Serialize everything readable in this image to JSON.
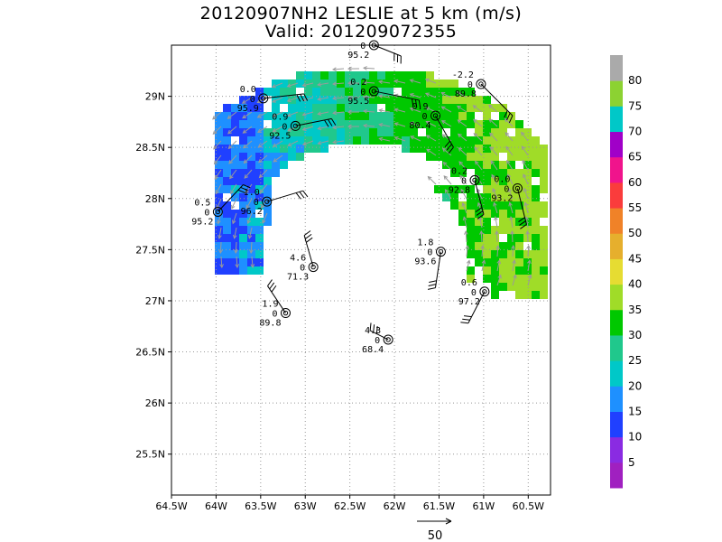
{
  "title": "20120907NH2 LESLIE at 5 km (m/s)",
  "subtitle": "Valid: 201209072355",
  "map": {
    "lon_range": [
      -64.5,
      -60.25
    ],
    "lat_range": [
      25.1,
      29.5
    ],
    "x_ticks": [
      -64.5,
      -64,
      -63.5,
      -63,
      -62.5,
      -62,
      -61.5,
      -61,
      -60.5
    ],
    "x_tick_labels": [
      "64.5W",
      "64W",
      "63.5W",
      "63W",
      "62.5W",
      "62W",
      "61.5W",
      "61W",
      "60.5W"
    ],
    "y_ticks": [
      25.5,
      26,
      26.5,
      27,
      27.5,
      28,
      28.5,
      29
    ],
    "y_tick_labels": [
      "25.5N",
      "26N",
      "26.5N",
      "27N",
      "27.5N",
      "28N",
      "28.5N",
      "29N"
    ],
    "grid": true,
    "field": "wind speed (m/s), partial eyewall arc; weak winds (10-20) on west side, 25-35 on north and east sides"
  },
  "colorbar": {
    "labels": [
      "5",
      "10",
      "15",
      "20",
      "25",
      "30",
      "35",
      "40",
      "45",
      "50",
      "55",
      "60",
      "65",
      "70",
      "75",
      "80"
    ],
    "colors": [
      "#a020c0",
      "#8a2be2",
      "#2040ff",
      "#1e90ff",
      "#00c8c8",
      "#20c88c",
      "#00c800",
      "#a0dc28",
      "#e6dc32",
      "#e6af2d",
      "#f08228",
      "#fa3c3c",
      "#f0148c",
      "#a000c8",
      "#00c8c8",
      "#8cd232",
      "#aaaaaa"
    ]
  },
  "stations": [
    {
      "lon": -62.23,
      "lat": 29.5,
      "top": "",
      "bottom": "95.2"
    },
    {
      "lon": -63.47,
      "lat": 28.98,
      "top": "0.0",
      "bottom": "95.9"
    },
    {
      "lon": -62.23,
      "lat": 29.05,
      "top": "0.2",
      "bottom": "95.5"
    },
    {
      "lon": -61.03,
      "lat": 29.12,
      "top": "-2.2",
      "bottom": "89.8"
    },
    {
      "lon": -63.11,
      "lat": 28.71,
      "top": "0.9",
      "bottom": "92.5"
    },
    {
      "lon": -61.54,
      "lat": 28.81,
      "top": "0.9",
      "bottom": "80.4"
    },
    {
      "lon": -61.1,
      "lat": 28.18,
      "top": "0.2",
      "bottom": "92.8"
    },
    {
      "lon": -60.62,
      "lat": 28.1,
      "top": "0.0",
      "bottom": "93.2"
    },
    {
      "lon": -63.43,
      "lat": 27.97,
      "top": "1.0",
      "bottom": "96.2"
    },
    {
      "lon": -63.98,
      "lat": 27.87,
      "top": "0.5",
      "bottom": "95.2"
    },
    {
      "lon": -61.48,
      "lat": 27.48,
      "top": "1.8",
      "bottom": "93.6"
    },
    {
      "lon": -62.91,
      "lat": 27.33,
      "top": "4.6",
      "bottom": "71.3"
    },
    {
      "lon": -60.99,
      "lat": 27.09,
      "top": "0.6",
      "bottom": "97.2"
    },
    {
      "lon": -63.22,
      "lat": 26.88,
      "top": "1.9",
      "bottom": "89.8"
    },
    {
      "lon": -62.07,
      "lat": 26.62,
      "top": "4.3",
      "bottom": "68.4"
    }
  ],
  "reference_vector": {
    "label": "50"
  },
  "colors": {
    "background": "#ffffff",
    "frame": "#000000",
    "grid": "#999999",
    "vector": "#9a9a9a"
  }
}
